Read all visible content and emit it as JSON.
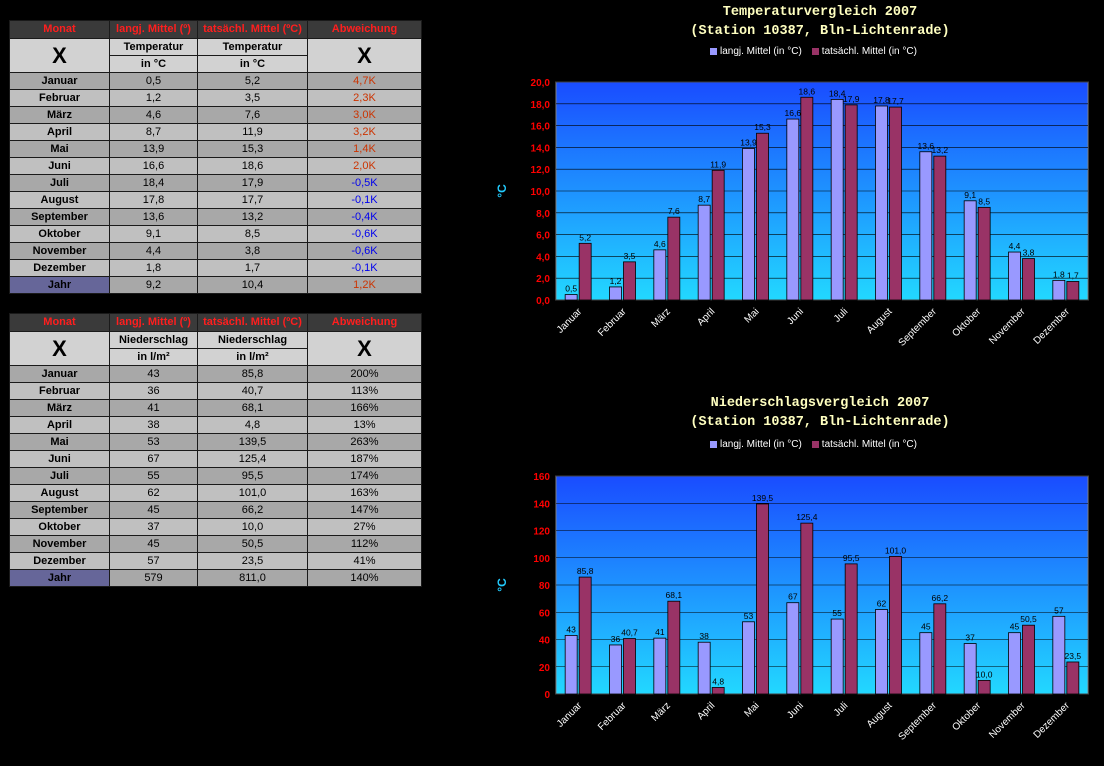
{
  "colors": {
    "series1": "#9999ff",
    "series2": "#993366",
    "axis_text": "#ff0000",
    "positive_dev": "#cc3300",
    "negative_dev": "#0000ee"
  },
  "temp_table": {
    "headers": [
      "Monat",
      "langj. Mittel (º)",
      "tatsächl. Mittel (ºC)",
      "Abweichung"
    ],
    "x_mark": "X",
    "sub1": [
      "Temperatur",
      "Temperatur"
    ],
    "sub2": [
      "in °C",
      "in °C"
    ],
    "rows": [
      {
        "month": "Januar",
        "avg": "0,5",
        "act": "5,2",
        "dev": "4,7K",
        "sign": "pos"
      },
      {
        "month": "Februar",
        "avg": "1,2",
        "act": "3,5",
        "dev": "2,3K",
        "sign": "pos"
      },
      {
        "month": "März",
        "avg": "4,6",
        "act": "7,6",
        "dev": "3,0K",
        "sign": "pos"
      },
      {
        "month": "April",
        "avg": "8,7",
        "act": "11,9",
        "dev": "3,2K",
        "sign": "pos"
      },
      {
        "month": "Mai",
        "avg": "13,9",
        "act": "15,3",
        "dev": "1,4K",
        "sign": "pos"
      },
      {
        "month": "Juni",
        "avg": "16,6",
        "act": "18,6",
        "dev": "2,0K",
        "sign": "pos"
      },
      {
        "month": "Juli",
        "avg": "18,4",
        "act": "17,9",
        "dev": "-0,5K",
        "sign": "neg"
      },
      {
        "month": "August",
        "avg": "17,8",
        "act": "17,7",
        "dev": "-0,1K",
        "sign": "neg"
      },
      {
        "month": "September",
        "avg": "13,6",
        "act": "13,2",
        "dev": "-0,4K",
        "sign": "neg"
      },
      {
        "month": "Oktober",
        "avg": "9,1",
        "act": "8,5",
        "dev": "-0,6K",
        "sign": "neg"
      },
      {
        "month": "November",
        "avg": "4,4",
        "act": "3,8",
        "dev": "-0,6K",
        "sign": "neg"
      },
      {
        "month": "Dezember",
        "avg": "1,8",
        "act": "1,7",
        "dev": "-0,1K",
        "sign": "neg"
      }
    ],
    "total": {
      "month": "Jahr",
      "avg": "9,2",
      "act": "10,4",
      "dev": "1,2K",
      "sign": "pos"
    }
  },
  "rain_table": {
    "headers": [
      "Monat",
      "langj. Mittel (º)",
      "tatsächl. Mittel (ºC)",
      "Abweichung"
    ],
    "x_mark": "X",
    "sub1": [
      "Niederschlag",
      "Niederschlag"
    ],
    "sub2": [
      "in l/m²",
      "in l/m²"
    ],
    "rows": [
      {
        "month": "Januar",
        "avg": "43",
        "act": "85,8",
        "dev": "200%"
      },
      {
        "month": "Februar",
        "avg": "36",
        "act": "40,7",
        "dev": "113%"
      },
      {
        "month": "März",
        "avg": "41",
        "act": "68,1",
        "dev": "166%"
      },
      {
        "month": "April",
        "avg": "38",
        "act": "4,8",
        "dev": "13%"
      },
      {
        "month": "Mai",
        "avg": "53",
        "act": "139,5",
        "dev": "263%"
      },
      {
        "month": "Juni",
        "avg": "67",
        "act": "125,4",
        "dev": "187%"
      },
      {
        "month": "Juli",
        "avg": "55",
        "act": "95,5",
        "dev": "174%"
      },
      {
        "month": "August",
        "avg": "62",
        "act": "101,0",
        "dev": "163%"
      },
      {
        "month": "September",
        "avg": "45",
        "act": "66,2",
        "dev": "147%"
      },
      {
        "month": "Oktober",
        "avg": "37",
        "act": "10,0",
        "dev": "27%"
      },
      {
        "month": "November",
        "avg": "45",
        "act": "50,5",
        "dev": "112%"
      },
      {
        "month": "Dezember",
        "avg": "57",
        "act": "23,5",
        "dev": "41%"
      }
    ],
    "total": {
      "month": "Jahr",
      "avg": "579",
      "act": "811,0",
      "dev": "140%"
    }
  },
  "chart_data": [
    {
      "type": "bar",
      "title": "Temperaturvergleich 2007",
      "subtitle": "(Station 10387, Bln-Lichtenrade)",
      "ylabel": "°C",
      "ylim": [
        0,
        20
      ],
      "ytick_step": 2,
      "ytick_decimals": 1,
      "value_decimals": 1,
      "categories": [
        "Januar",
        "Februar",
        "März",
        "April",
        "Mai",
        "Juni",
        "Juli",
        "August",
        "September",
        "Oktober",
        "November",
        "Dezember"
      ],
      "series": [
        {
          "name": "langj. Mittel (in °C)",
          "values": [
            0.5,
            1.2,
            4.6,
            8.7,
            13.9,
            16.6,
            18.4,
            17.8,
            13.6,
            9.1,
            4.4,
            1.8
          ]
        },
        {
          "name": "tatsächl. Mittel (in °C)",
          "values": [
            5.2,
            3.5,
            7.6,
            11.9,
            15.3,
            18.6,
            17.9,
            17.7,
            13.2,
            8.5,
            3.8,
            1.7
          ]
        }
      ],
      "grid": true,
      "legend": "top-center"
    },
    {
      "type": "bar",
      "title": "Niederschlagsvergleich 2007",
      "subtitle": "(Station 10387, Bln-Lichtenrade)",
      "ylabel": "°C",
      "ylim": [
        0,
        160
      ],
      "ytick_step": 20,
      "ytick_decimals": 0,
      "value_decimals_by_series": [
        0,
        1
      ],
      "categories": [
        "Januar",
        "Februar",
        "März",
        "April",
        "Mai",
        "Juni",
        "Juli",
        "August",
        "September",
        "Oktober",
        "November",
        "Dezember"
      ],
      "series": [
        {
          "name": "langj. Mittel (in °C)",
          "values": [
            43,
            36,
            41,
            38,
            53,
            67,
            55,
            62,
            45,
            37,
            45,
            57
          ]
        },
        {
          "name": "tatsächl. Mittel (in °C)",
          "values": [
            85.8,
            40.7,
            68.1,
            4.8,
            139.5,
            125.4,
            95.5,
            101.0,
            66.2,
            10.0,
            50.5,
            23.5
          ]
        }
      ],
      "grid": true,
      "legend": "top-center"
    }
  ]
}
